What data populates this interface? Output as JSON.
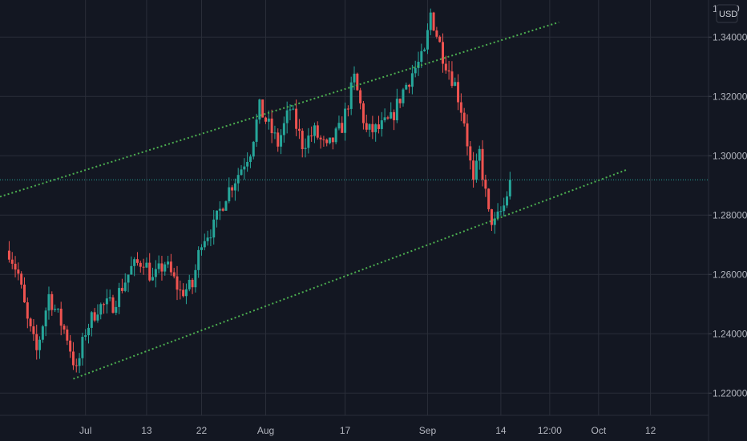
{
  "currency_badge": "USD",
  "top_tick_fragment": "1",
  "top_tick_fragment_b": "0",
  "colors": {
    "background": "#131722",
    "grid": "#2a2e39",
    "up": "#26a69a",
    "down": "#ef5350",
    "channel": "#4caf50",
    "price_line": "#26a69a",
    "text": "#b2b5be"
  },
  "chart_data": {
    "type": "candlestick",
    "title": "",
    "xlabel": "",
    "ylabel": "",
    "ylim": [
      1.2125,
      1.3525
    ],
    "yticks": [
      "1.34000",
      "1.32000",
      "1.30000",
      "1.28000",
      "1.26000",
      "1.24000",
      "1.22000"
    ],
    "ytick_values": [
      1.34,
      1.32,
      1.3,
      1.28,
      1.26,
      1.24,
      1.22
    ],
    "xticks": [
      "Jul",
      "13",
      "22",
      "Aug",
      "17",
      "Sep",
      "14",
      "12:00",
      "Oct",
      "12"
    ],
    "current_price": 1.2919,
    "x_range_bars": [
      -3,
      229
    ],
    "xtick_bars": [
      25,
      45,
      63,
      84,
      110,
      137,
      161,
      177,
      193,
      210
    ],
    "channel_upper": {
      "from": {
        "bar": -3,
        "price": 1.2862
      },
      "to": {
        "bar": 180,
        "price": 1.345
      }
    },
    "channel_lower": {
      "from": {
        "bar": 21,
        "price": 1.2248
      },
      "to": {
        "bar": 202,
        "price": 1.2952
      }
    },
    "path_points": [
      [
        0,
        1.268
      ],
      [
        3,
        1.26
      ],
      [
        6,
        1.244
      ],
      [
        9,
        1.234
      ],
      [
        13,
        1.253
      ],
      [
        16,
        1.246
      ],
      [
        19,
        1.239
      ],
      [
        22,
        1.227
      ],
      [
        25,
        1.241
      ],
      [
        29,
        1.249
      ],
      [
        34,
        1.25
      ],
      [
        40,
        1.262
      ],
      [
        44,
        1.265
      ],
      [
        47,
        1.258
      ],
      [
        51,
        1.264
      ],
      [
        56,
        1.254
      ],
      [
        60,
        1.256
      ],
      [
        63,
        1.272
      ],
      [
        67,
        1.276
      ],
      [
        71,
        1.287
      ],
      [
        75,
        1.294
      ],
      [
        79,
        1.302
      ],
      [
        82,
        1.316
      ],
      [
        85,
        1.31
      ],
      [
        88,
        1.304
      ],
      [
        92,
        1.316
      ],
      [
        96,
        1.304
      ],
      [
        100,
        1.308
      ],
      [
        104,
        1.302
      ],
      [
        109,
        1.31
      ],
      [
        113,
        1.326
      ],
      [
        117,
        1.308
      ],
      [
        121,
        1.309
      ],
      [
        125,
        1.312
      ],
      [
        129,
        1.322
      ],
      [
        132,
        1.328
      ],
      [
        136,
        1.334
      ],
      [
        138,
        1.348
      ],
      [
        142,
        1.334
      ],
      [
        146,
        1.324
      ],
      [
        149,
        1.312
      ],
      [
        152,
        1.29
      ],
      [
        154,
        1.301
      ],
      [
        157,
        1.28
      ],
      [
        159,
        1.277
      ],
      [
        162,
        1.283
      ],
      [
        164,
        1.291
      ]
    ]
  }
}
